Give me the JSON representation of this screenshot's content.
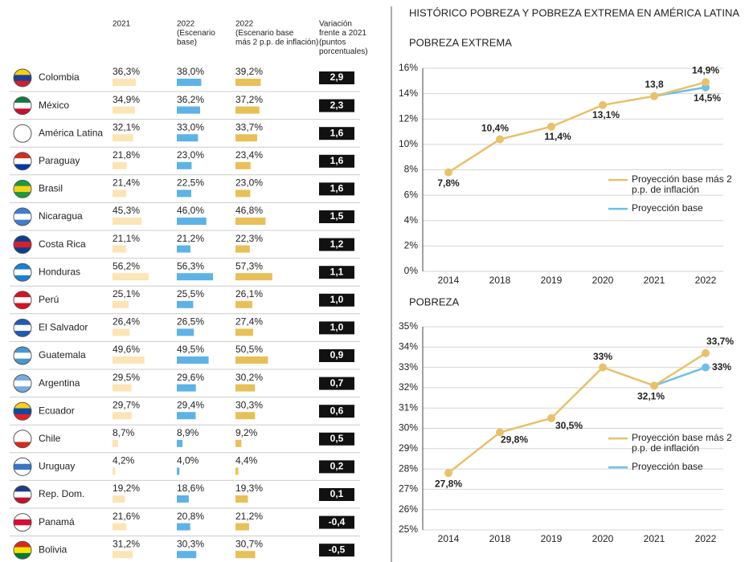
{
  "title": "HISTÓRICO POBREZA Y POBREZA EXTREMA EN AMÉRICA LATINA",
  "table": {
    "columns": [
      [
        "2021"
      ],
      [
        "2022",
        "(Escenario",
        "base)"
      ],
      [
        "2022",
        "(Escenario base",
        "más 2 p.p. de inflación)"
      ],
      [
        "Variación",
        "frente a 2021",
        "(puntos",
        "porcentuales)"
      ]
    ],
    "rows": [
      "Colombia",
      "México",
      "América Latina",
      "Paraguay",
      "Brasil",
      "Nicaragua",
      "Costa Rica",
      "Honduras",
      "Perú",
      "El Salvador",
      "Guatemala",
      "Argentina",
      "Ecuador",
      "Chile",
      "Uruguay",
      "Rep. Dom.",
      "Panamá",
      "Bolivia"
    ],
    "series": [
      {
        "color": "#fde4b4",
        "values": [
          36.3,
          34.9,
          32.1,
          21.8,
          21.4,
          45.3,
          21.1,
          56.2,
          25.1,
          26.4,
          49.6,
          29.5,
          29.7,
          8.7,
          4.2,
          19.2,
          21.6,
          31.2
        ],
        "value_labels": [
          "36,3%",
          "34,9%",
          "32,1%",
          "21,8%",
          "21,4%",
          "45,3%",
          "21,1%",
          "56,2%",
          "25,1%",
          "26,4%",
          "49,6%",
          "29,5%",
          "29,7%",
          "8,7%",
          "4,2%",
          "19,2%",
          "21,6%",
          "31,2%"
        ]
      },
      {
        "color": "#5db3e5",
        "values": [
          38.0,
          36.2,
          33.0,
          23.0,
          22.5,
          46.0,
          21.2,
          56.3,
          25.5,
          26.5,
          49.5,
          29.6,
          29.4,
          8.9,
          4.0,
          18.6,
          20.8,
          30.3
        ],
        "value_labels": [
          "38,0%",
          "36,2%",
          "33,0%",
          "23,0%",
          "22,5%",
          "46,0%",
          "21,2%",
          "56,3%",
          "25,5%",
          "26,5%",
          "49,5%",
          "29,6%",
          "29,4%",
          "8,9%",
          "4,0%",
          "18,6%",
          "20,8%",
          "30,3%"
        ]
      },
      {
        "color": "#e8c058",
        "values": [
          39.2,
          37.2,
          33.7,
          23.4,
          23.0,
          46.8,
          22.3,
          57.3,
          26.1,
          27.4,
          50.5,
          30.2,
          30.3,
          9.2,
          4.4,
          19.3,
          21.2,
          30.7
        ],
        "value_labels": [
          "39,2%",
          "37,2%",
          "33,7%",
          "23,4%",
          "23,0%",
          "46,8%",
          "22,3%",
          "57,3%",
          "26,1%",
          "27,4%",
          "50,5%",
          "30,2%",
          "30,3%",
          "9,2%",
          "4,4%",
          "19,3%",
          "21,2%",
          "30,7%"
        ]
      }
    ],
    "variation": {
      "values": [
        2.9,
        2.3,
        1.6,
        1.6,
        1.6,
        1.5,
        1.2,
        1.1,
        1.0,
        1.0,
        0.9,
        0.7,
        0.6,
        0.5,
        0.2,
        0.1,
        -0.4,
        -0.5
      ],
      "value_labels": [
        "2,9",
        "2,3",
        "1,6",
        "1,6",
        "1,6",
        "1,5",
        "1,2",
        "1,1",
        "1,0",
        "1,0",
        "0,9",
        "0,7",
        "0,6",
        "0,5",
        "0,2",
        "0,1",
        "-0,4",
        "-0,5"
      ]
    }
  },
  "chart_data": [
    {
      "type": "line",
      "title": "POBREZA EXTREMA",
      "categories": [
        "2014",
        "2018",
        "2019",
        "2020",
        "2021",
        "2022"
      ],
      "ylim": [
        0,
        16
      ],
      "yticks": [
        {
          "value": 0,
          "label": "0%"
        },
        {
          "value": 2,
          "label": "2%"
        },
        {
          "value": 4,
          "label": "4%"
        },
        {
          "value": 6,
          "label": "6%"
        },
        {
          "value": 8,
          "label": "8%"
        },
        {
          "value": 10,
          "label": "10%"
        },
        {
          "value": 12,
          "label": "12%"
        },
        {
          "value": 14,
          "label": "14%"
        },
        {
          "value": 16,
          "label": "16%"
        }
      ],
      "grid": true,
      "legend": "right",
      "series": [
        {
          "name": "Proyección base más 2 p.p. de inflación",
          "color": "#e8c16a",
          "values": [
            7.8,
            10.4,
            11.4,
            13.1,
            13.8,
            14.9
          ],
          "value_labels": [
            "7,8%",
            "10,4%",
            "11,4%",
            "13,1%",
            "13,8",
            "14,9%"
          ]
        },
        {
          "name": "Proyección base",
          "color": "#6dbfe8",
          "values": [
            null,
            null,
            null,
            null,
            13.8,
            14.5
          ],
          "value_labels": [
            null,
            null,
            null,
            null,
            null,
            "14,5%"
          ]
        }
      ]
    },
    {
      "type": "line",
      "title": "POBREZA",
      "categories": [
        "2014",
        "2018",
        "2019",
        "2020",
        "2021",
        "2022"
      ],
      "ylim": [
        25,
        35
      ],
      "yticks": [
        {
          "value": 25,
          "label": "25%"
        },
        {
          "value": 26,
          "label": "26%"
        },
        {
          "value": 27,
          "label": "27%"
        },
        {
          "value": 28,
          "label": "28%"
        },
        {
          "value": 29,
          "label": "29%"
        },
        {
          "value": 30,
          "label": "30%"
        },
        {
          "value": 31,
          "label": "31%"
        },
        {
          "value": 32,
          "label": "32%"
        },
        {
          "value": 33,
          "label": "33%"
        },
        {
          "value": 34,
          "label": "34%"
        },
        {
          "value": 35,
          "label": "35%"
        }
      ],
      "grid": true,
      "legend": "right",
      "series": [
        {
          "name": "Proyección base más 2 p.p. de inflación",
          "color": "#e8c16a",
          "values": [
            27.8,
            29.8,
            30.5,
            33,
            32.1,
            33.7
          ],
          "value_labels": [
            "27,8%",
            "29,8%",
            "30,5%",
            "33%",
            "32,1%",
            "33,7%"
          ]
        },
        {
          "name": "Proyección base",
          "color": "#6dbfe8",
          "values": [
            null,
            null,
            null,
            null,
            32.1,
            33
          ],
          "value_labels": [
            null,
            null,
            null,
            null,
            null,
            "33%"
          ]
        }
      ]
    }
  ]
}
